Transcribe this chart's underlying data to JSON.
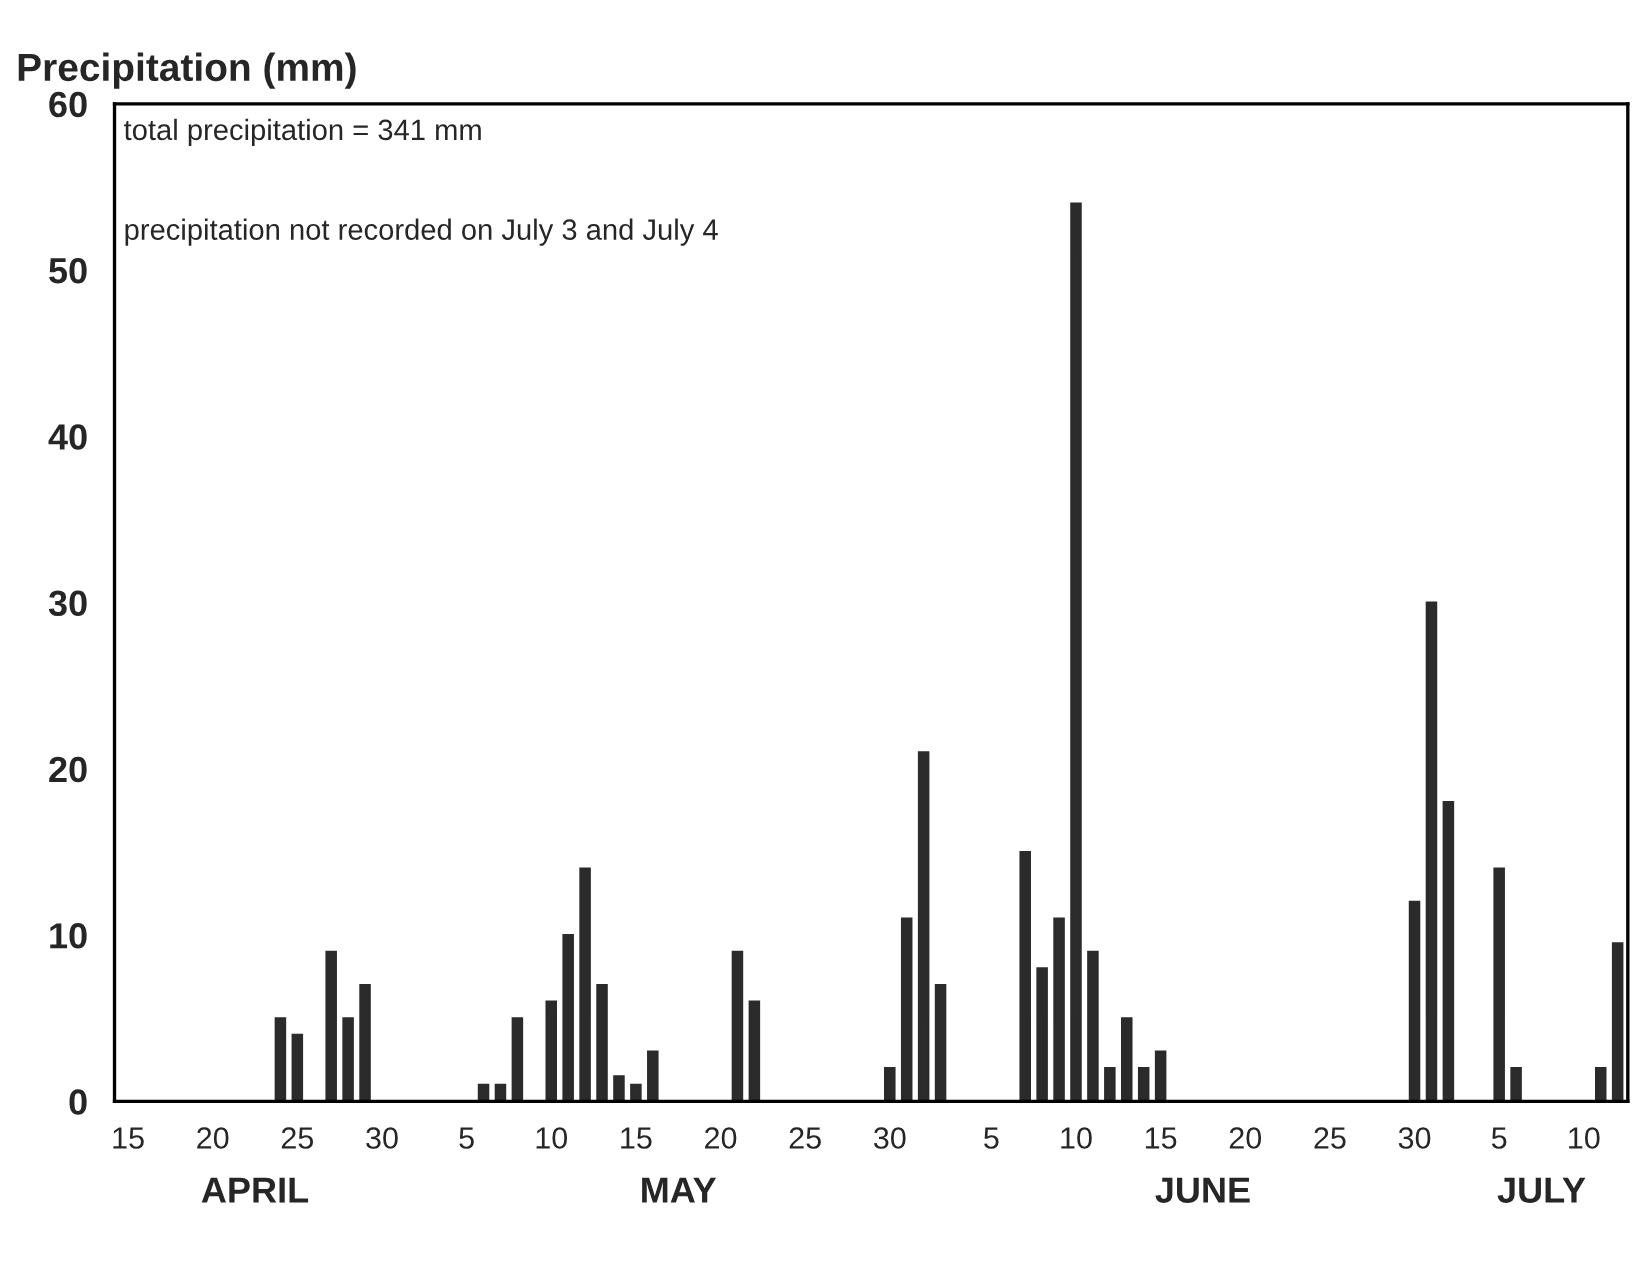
{
  "chart_data": {
    "type": "bar",
    "ylabel": "Precipitation (mm)",
    "categories": [
      "15",
      null,
      null,
      null,
      null,
      "20",
      null,
      null,
      null,
      null,
      "25",
      null,
      null,
      null,
      null,
      "30",
      null,
      null,
      null,
      null,
      "5",
      null,
      null,
      null,
      null,
      "10",
      null,
      null,
      null,
      null,
      "15",
      null,
      null,
      null,
      null,
      "20",
      null,
      null,
      null,
      null,
      "25",
      null,
      null,
      null,
      null,
      "30",
      null,
      null,
      null,
      null,
      null,
      "5",
      null,
      null,
      null,
      null,
      "10",
      null,
      null,
      null,
      null,
      "15",
      null,
      null,
      null,
      null,
      "20",
      null,
      null,
      null,
      null,
      "25",
      null,
      null,
      null,
      null,
      "30",
      null,
      null,
      null,
      null,
      "5",
      null,
      null,
      null,
      null,
      "10",
      null,
      null
    ],
    "values": [
      0,
      0,
      0,
      0,
      0,
      0,
      0,
      0,
      0,
      5,
      4,
      0,
      9,
      5,
      7,
      0,
      0,
      0,
      0,
      0,
      0,
      1,
      1,
      5,
      0,
      6,
      10,
      14,
      7,
      1.5,
      1,
      3,
      0,
      0,
      0,
      0,
      9,
      6,
      0,
      0,
      0,
      0,
      0,
      0,
      0,
      2,
      11,
      21,
      7,
      0,
      0,
      0,
      0,
      15,
      8,
      11,
      54,
      9,
      2,
      5,
      2,
      3,
      0,
      0,
      0,
      0,
      0,
      0,
      0,
      0,
      0,
      0,
      0,
      0,
      0,
      0,
      12,
      30,
      18,
      null,
      null,
      14,
      2,
      0,
      0,
      0,
      0,
      2,
      9.5
    ],
    "color": "#2b2b2b",
    "ylim": [
      0,
      60
    ],
    "yticks": [
      0,
      10,
      20,
      30,
      40,
      50,
      60
    ],
    "grid": false,
    "annotations": [
      "total precipitation = 341 mm",
      "precipitation not recorded on July 3 and July 4",
      "APRIL",
      "MAY",
      "JUNE",
      "JULY"
    ]
  }
}
